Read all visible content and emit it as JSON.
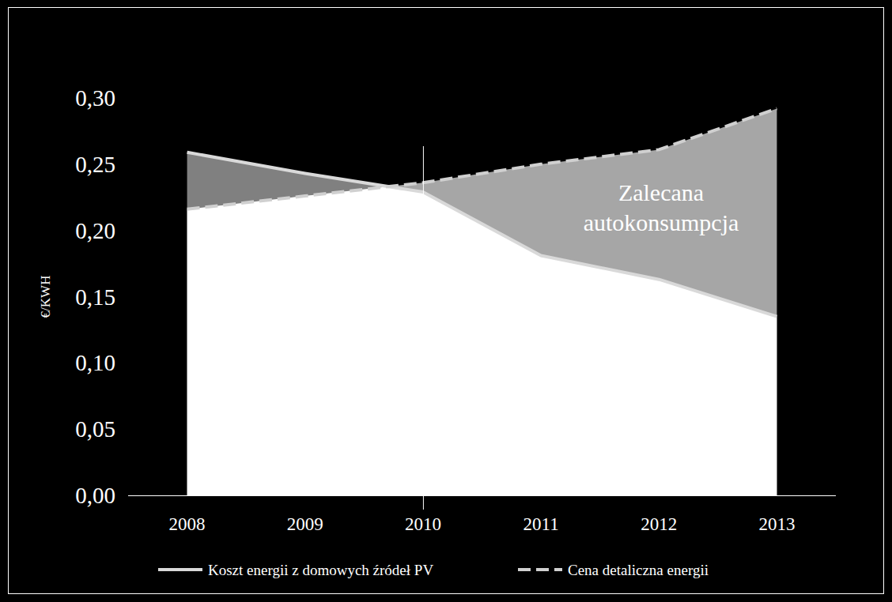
{
  "chart_data": {
    "type": "area",
    "y_label": "€/KWH",
    "categories": [
      "2008",
      "2009",
      "2010",
      "2011",
      "2012",
      "2013"
    ],
    "series": [
      {
        "name": "Koszt energii z domowych źródeł PV",
        "color": "#d9d9d9",
        "line_style": "solid",
        "values": [
          0.259,
          0.243,
          0.229,
          0.181,
          0.163,
          0.135
        ]
      },
      {
        "name": "Cena detaliczna energii",
        "color": "#d0d0d0",
        "line_style": "dashed",
        "values": [
          0.216,
          0.226,
          0.236,
          0.25,
          0.261,
          0.292
        ]
      }
    ],
    "ylim": [
      0,
      0.3
    ],
    "yticks": [
      {
        "value": 0,
        "label": "0,00"
      },
      {
        "value": 0.05,
        "label": "0,05"
      },
      {
        "value": 0.1,
        "label": "0,10"
      },
      {
        "value": 0.15,
        "label": "0,15"
      },
      {
        "value": 0.2,
        "label": "0,20"
      },
      {
        "value": 0.25,
        "label": "0,25"
      },
      {
        "value": 0.3,
        "label": "0,30"
      }
    ],
    "grid": false,
    "legend": "bottom",
    "annotations": [
      {
        "text": "Zalecana autokonsumpcja"
      }
    ],
    "reference_lines": [
      {
        "x": "2010"
      }
    ]
  }
}
